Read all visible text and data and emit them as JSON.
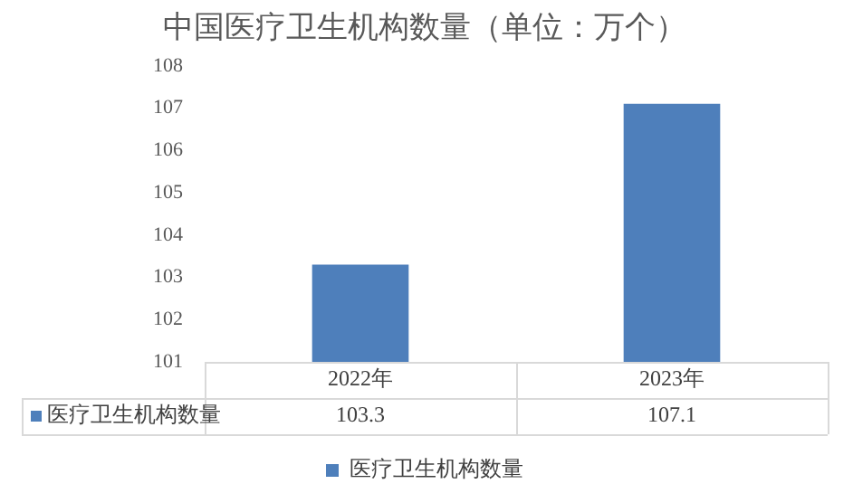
{
  "chart_data": {
    "type": "bar",
    "title": "中国医疗卫生机构数量（单位：万个）",
    "categories": [
      "2022年",
      "2023年"
    ],
    "series": [
      {
        "name": "医疗卫生机构数量",
        "color": "#4e7fbb",
        "values": [
          103.3,
          107.1
        ]
      }
    ],
    "ylim": [
      101,
      108
    ],
    "yticks": [
      101,
      102,
      103,
      104,
      105,
      106,
      107,
      108
    ],
    "grid": false,
    "legend": "bottom",
    "data_labels": true
  }
}
